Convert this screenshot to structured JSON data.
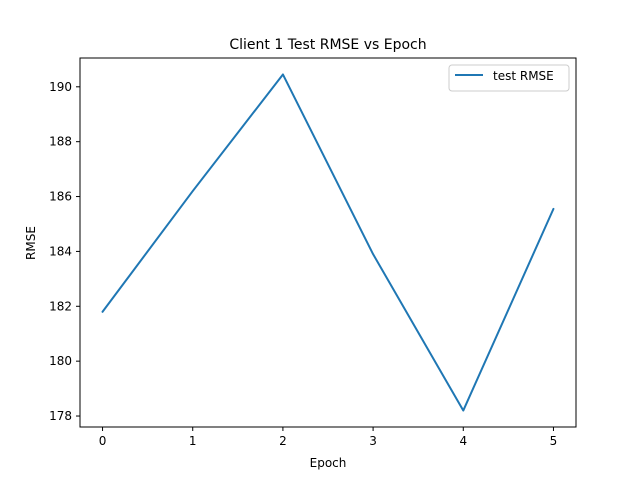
{
  "chart_data": {
    "type": "line",
    "title": "Client 1 Test RMSE vs Epoch",
    "xlabel": "Epoch",
    "ylabel": "RMSE",
    "x": [
      0,
      1,
      2,
      3,
      4,
      5
    ],
    "series": [
      {
        "name": "test RMSE",
        "values": [
          181.8,
          186.2,
          190.45,
          183.9,
          178.2,
          185.55
        ],
        "color": "#1f77b4"
      }
    ],
    "xlim": [
      -0.25,
      5.25
    ],
    "ylim": [
      177.6,
      191.05
    ],
    "xticks": [
      "0",
      "1",
      "2",
      "3",
      "4",
      "5"
    ],
    "yticks": [
      "178",
      "180",
      "182",
      "184",
      "186",
      "188",
      "190"
    ],
    "grid": false,
    "legend_position": "upper-right"
  }
}
